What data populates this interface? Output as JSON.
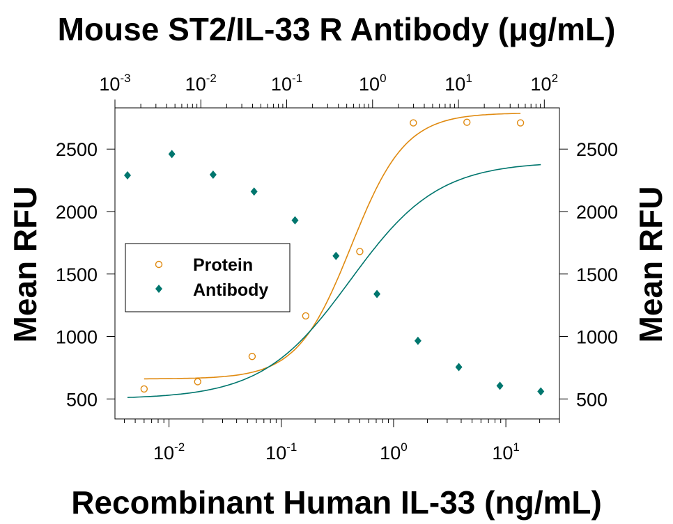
{
  "chart_data": {
    "type": "scatter",
    "title": "Mouse ST2/IL-33 R Antibody (μg/mL)",
    "xlabel": "Recombinant Human IL-33 (ng/mL)",
    "ylabel": "Mean RFU",
    "y2label": "Mean RFU",
    "x_scale": "log",
    "x_top_scale": "log",
    "xlim": [
      0.0033,
      30
    ],
    "x_top_lim": [
      0.001,
      150
    ],
    "ylim": [
      340,
      2830
    ],
    "grid": false,
    "legend_position": "center-left",
    "bottom_x_ticks": [
      {
        "value": 0.01,
        "base": "10",
        "exp": "-2"
      },
      {
        "value": 0.1,
        "base": "10",
        "exp": "-1"
      },
      {
        "value": 1,
        "base": "10",
        "exp": "0"
      },
      {
        "value": 10,
        "base": "10",
        "exp": "1"
      }
    ],
    "top_x_ticks": [
      {
        "value": 0.001,
        "base": "10",
        "exp": "-3"
      },
      {
        "value": 0.01,
        "base": "10",
        "exp": "-2"
      },
      {
        "value": 0.1,
        "base": "10",
        "exp": "-1"
      },
      {
        "value": 1,
        "base": "10",
        "exp": "0"
      },
      {
        "value": 10,
        "base": "10",
        "exp": "1"
      },
      {
        "value": 100,
        "base": "10",
        "exp": "2"
      }
    ],
    "y_ticks": [
      "500",
      "1000",
      "1500",
      "2000",
      "2500"
    ],
    "series": [
      {
        "name": "Protein",
        "axis": "bottom",
        "marker": "open-circle",
        "color": "#E08A10",
        "x": [
          0.006,
          0.018,
          0.055,
          0.165,
          0.5,
          1.5,
          4.5,
          13.5
        ],
        "y": [
          580,
          638,
          840,
          1165,
          1680,
          2710,
          2715,
          2710
        ],
        "fit": {
          "bottom": 660,
          "top": 2790,
          "ec50": 0.42,
          "hill": 1.8
        }
      },
      {
        "name": "Antibody",
        "axis": "top",
        "marker": "filled-diamond",
        "color": "#00766E",
        "x": [
          0.0014,
          0.0046,
          0.0139,
          0.0417,
          0.125,
          0.375,
          1.125,
          3.375,
          10.1,
          30.4,
          91
        ],
        "y": [
          2290,
          2460,
          2295,
          2160,
          1930,
          1645,
          1340,
          965,
          755,
          605,
          560
        ],
        "fit": {
          "bottom": 500,
          "top": 2400,
          "ec50": 0.55,
          "hill": 0.85
        }
      }
    ]
  }
}
